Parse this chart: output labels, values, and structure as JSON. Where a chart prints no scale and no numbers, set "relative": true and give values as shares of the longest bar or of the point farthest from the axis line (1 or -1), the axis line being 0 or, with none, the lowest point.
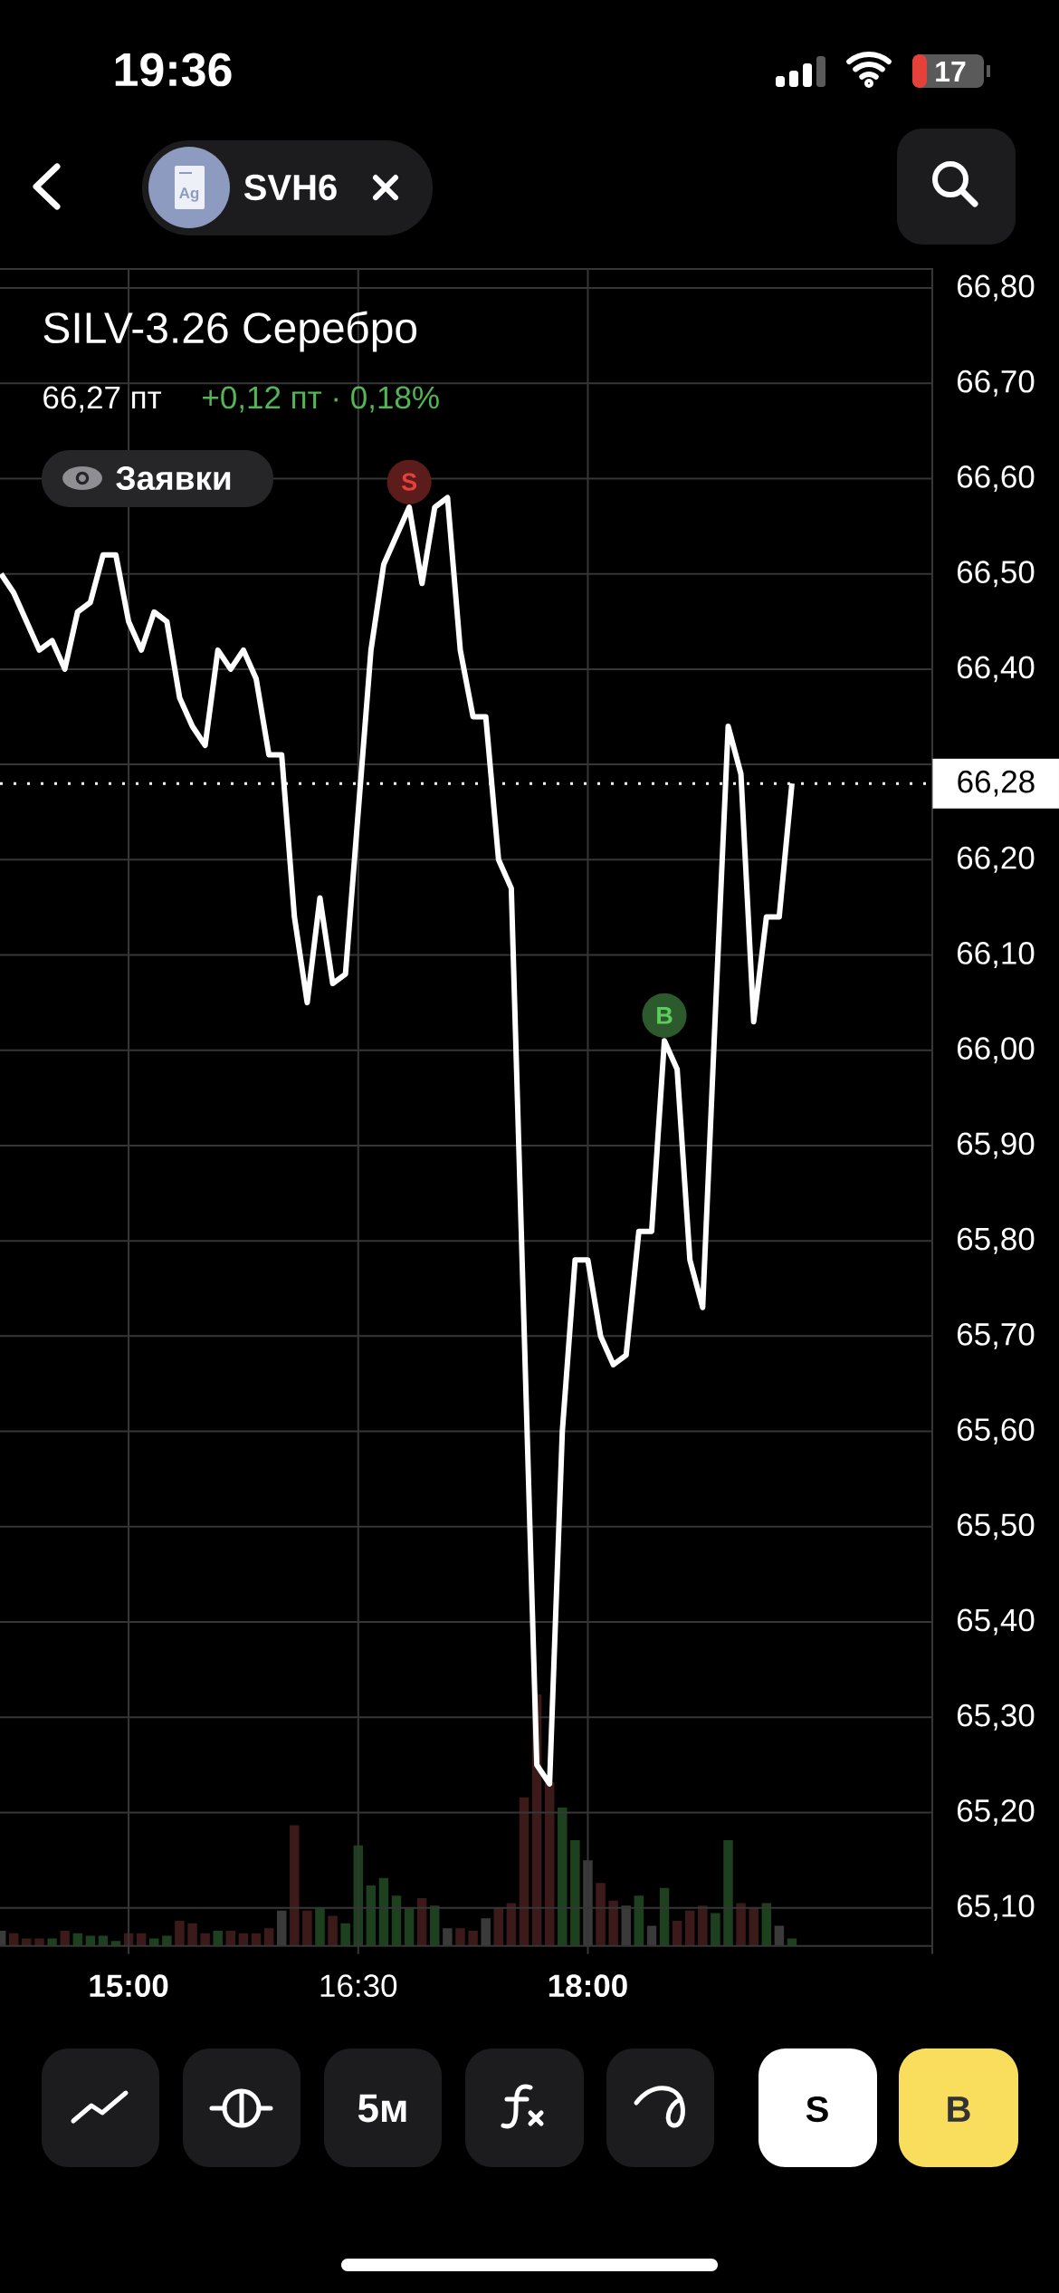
{
  "chart_data": [
    {
      "type": "line",
      "title": "SILV-3.26 Серебро",
      "subtitle": "66,27 пт",
      "x": [
        14.1667,
        14.25,
        14.3333,
        14.4167,
        14.5,
        14.5833,
        14.6667,
        14.75,
        14.8333,
        14.9167,
        15,
        15.0833,
        15.1667,
        15.25,
        15.3333,
        15.4167,
        15.5,
        15.5833,
        15.6667,
        15.75,
        15.8333,
        15.9167,
        16,
        16.0833,
        16.1667,
        16.25,
        16.3333,
        16.4167,
        16.5,
        16.5833,
        16.6667,
        16.75,
        16.8333,
        16.9167,
        17,
        17.0833,
        17.1667,
        17.25,
        17.3333,
        17.4167,
        17.5,
        17.5833,
        17.6667,
        17.75,
        17.8333,
        17.9167,
        18,
        18.0833,
        18.1667,
        18.25,
        18.3333,
        18.4167,
        18.5,
        18.5833,
        18.6667,
        18.75,
        18.8333,
        18.9167,
        19,
        19.0833,
        19.1667,
        19.25,
        19.3333
      ],
      "values": [
        66.5,
        66.48,
        66.45,
        66.42,
        66.43,
        66.4,
        66.46,
        66.47,
        66.52,
        66.52,
        66.45,
        66.42,
        66.46,
        66.45,
        66.37,
        66.34,
        66.32,
        66.42,
        66.4,
        66.42,
        66.39,
        66.31,
        66.31,
        66.14,
        66.05,
        66.16,
        66.07,
        66.08,
        66.25,
        66.42,
        66.51,
        66.54,
        66.57,
        66.49,
        66.57,
        66.58,
        66.42,
        66.35,
        66.35,
        66.2,
        66.17,
        65.71,
        65.25,
        65.23,
        65.6,
        65.78,
        65.78,
        65.7,
        65.67,
        65.68,
        65.81,
        65.81,
        66.01,
        65.98,
        65.78,
        65.73,
        66.04,
        66.34,
        66.29,
        66.03,
        66.14,
        66.14,
        66.28
      ],
      "color": "#ffffff",
      "xlim": [
        14.16,
        20.25
      ],
      "ylim": [
        65.06,
        66.82
      ],
      "xticks": [
        {
          "value": 15,
          "label": "15:00"
        },
        {
          "value": 16.5,
          "label": "16:30"
        },
        {
          "value": 18,
          "label": "18:00"
        }
      ],
      "yticks": [
        {
          "value": 65.1,
          "label": "65,10"
        },
        {
          "value": 65.2,
          "label": "65,20"
        },
        {
          "value": 65.3,
          "label": "65,30"
        },
        {
          "value": 65.4,
          "label": "65,40"
        },
        {
          "value": 65.5,
          "label": "65,50"
        },
        {
          "value": 65.6,
          "label": "65,60"
        },
        {
          "value": 65.7,
          "label": "65,70"
        },
        {
          "value": 65.8,
          "label": "65,80"
        },
        {
          "value": 65.9,
          "label": "65,90"
        },
        {
          "value": 66.0,
          "label": "66,00"
        },
        {
          "value": 66.1,
          "label": "66,10"
        },
        {
          "value": 66.2,
          "label": "66,20"
        },
        {
          "value": 66.3,
          "label": null
        },
        {
          "value": 66.4,
          "label": "66,40"
        },
        {
          "value": 66.5,
          "label": "66,50"
        },
        {
          "value": 66.6,
          "label": "66,60"
        },
        {
          "value": 66.7,
          "label": "66,70"
        },
        {
          "value": 66.8,
          "label": "66,80"
        }
      ],
      "grid": true,
      "ref_lines": [
        {
          "axis": "y",
          "value": 66.28,
          "label": "66,28",
          "color": "#ffffff",
          "line_style": "dotted"
        }
      ],
      "annotations": [
        "19:36",
        "17",
        "Ag",
        "SVH6",
        "+0,12 пт · 0,18%",
        "Заявки",
        {
          "text": "S",
          "x": 16.8333,
          "y": 66.57
        },
        {
          "text": "B",
          "x": 18.5,
          "y": 66.01
        },
        "5м",
        "S",
        "B"
      ]
    },
    {
      "type": "bar",
      "relative": true,
      "tick_labels": false,
      "xlim": [
        14.16,
        20.25
      ],
      "x": [
        14.1667,
        14.25,
        14.3333,
        14.4167,
        14.5,
        14.5833,
        14.6667,
        14.75,
        14.8333,
        14.9167,
        15,
        15.0833,
        15.1667,
        15.25,
        15.3333,
        15.4167,
        15.5,
        15.5833,
        15.6667,
        15.75,
        15.8333,
        15.9167,
        16,
        16.0833,
        16.1667,
        16.25,
        16.3333,
        16.4167,
        16.5,
        16.5833,
        16.6667,
        16.75,
        16.8333,
        16.9167,
        17,
        17.0833,
        17.1667,
        17.25,
        17.3333,
        17.4167,
        17.5,
        17.5833,
        17.6667,
        17.75,
        17.8333,
        17.9167,
        18,
        18.0833,
        18.1667,
        18.25,
        18.3333,
        18.4167,
        18.5,
        18.5833,
        18.6667,
        18.75,
        18.8333,
        18.9167,
        19,
        19.0833,
        19.1667,
        19.25,
        19.3333
      ],
      "values": [
        0.06,
        0.05,
        0.03,
        0.03,
        0.03,
        0.06,
        0.05,
        0.04,
        0.04,
        0.02,
        0.05,
        0.05,
        0.03,
        0.04,
        0.1,
        0.09,
        0.05,
        0.06,
        0.06,
        0.05,
        0.05,
        0.07,
        0.14,
        0.48,
        0.14,
        0.15,
        0.12,
        0.09,
        0.4,
        0.24,
        0.27,
        0.2,
        0.15,
        0.19,
        0.16,
        0.07,
        0.07,
        0.06,
        0.11,
        0.15,
        0.17,
        0.59,
        1,
        0.65,
        0.55,
        0.42,
        0.34,
        0.25,
        0.18,
        0.16,
        0.2,
        0.08,
        0.23,
        0.1,
        0.14,
        0.16,
        0.13,
        0.42,
        0.17,
        0.15,
        0.17,
        0.08,
        0.03
      ],
      "colors": [
        "#3a3a3a",
        "#3c1a1a",
        "#3c1a1a",
        "#3c1a1a",
        "#1d401f",
        "#3c1a1a",
        "#1d401f",
        "#1d401f",
        "#1d401f",
        "#1d401f",
        "#3c1a1a",
        "#3c1a1a",
        "#1d401f",
        "#1d401f",
        "#3c1a1a",
        "#3c1a1a",
        "#3c1a1a",
        "#1d401f",
        "#3c1a1a",
        "#3c1a1a",
        "#3c1a1a",
        "#3c1a1a",
        "#3a3a3a",
        "#3c1a1a",
        "#3c1a1a",
        "#1d401f",
        "#3c1a1a",
        "#1d401f",
        "#1d401f",
        "#1d401f",
        "#1d401f",
        "#1d401f",
        "#1d401f",
        "#3c1a1a",
        "#1d401f",
        "#3a3a3a",
        "#3c1a1a",
        "#3c1a1a",
        "#3a3a3a",
        "#3c1a1a",
        "#3c1a1a",
        "#3c1a1a",
        "#3c1a1a",
        "#3c1a1a",
        "#1d401f",
        "#1d401f",
        "#3a3a3a",
        "#3c1a1a",
        "#3c1a1a",
        "#3a3a3a",
        "#1d401f",
        "#3a3a3a",
        "#1d401f",
        "#3c1a1a",
        "#3c1a1a",
        "#3c1a1a",
        "#1d401f",
        "#1d401f",
        "#3c1a1a",
        "#3c1a1a",
        "#1d401f",
        "#3a3a3a",
        "#1d401f"
      ]
    }
  ]
}
